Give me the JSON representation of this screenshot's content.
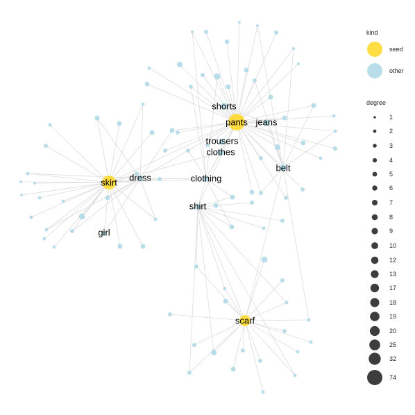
{
  "graph": {
    "labeled_nodes": [
      {
        "id": "pants",
        "kind": "seed",
        "degree": 74
      },
      {
        "id": "skirt",
        "kind": "seed",
        "degree": 32
      },
      {
        "id": "scarf",
        "kind": "seed",
        "degree": 25
      },
      {
        "id": "shorts",
        "kind": "other",
        "degree": 20
      },
      {
        "id": "jeans",
        "kind": "other",
        "degree": 19
      },
      {
        "id": "trousers",
        "kind": "other",
        "degree": 18
      },
      {
        "id": "clothes",
        "kind": "other",
        "degree": 17
      },
      {
        "id": "belt",
        "kind": "other",
        "degree": 13
      },
      {
        "id": "dress",
        "kind": "other",
        "degree": 12
      },
      {
        "id": "clothing",
        "kind": "other",
        "degree": 12
      },
      {
        "id": "shirt",
        "kind": "other",
        "degree": 10
      },
      {
        "id": "girl",
        "kind": "other",
        "degree": 9
      }
    ],
    "colors": {
      "seed": "#ffd92f",
      "other": "#add8e6",
      "edge": "#dcdcdc",
      "degree_key": "#333333"
    }
  },
  "legend": {
    "kind_title": "kind",
    "kind_items": [
      {
        "label": "seed",
        "kind": "seed"
      },
      {
        "label": "other",
        "kind": "other"
      }
    ],
    "degree_title": "degree",
    "degree_items": [
      "1",
      "2",
      "3",
      "4",
      "5",
      "6",
      "7",
      "8",
      "9",
      "10",
      "12",
      "13",
      "17",
      "18",
      "19",
      "20",
      "25",
      "32",
      "74"
    ]
  }
}
